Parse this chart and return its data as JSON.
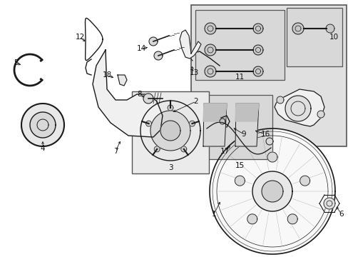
{
  "bg_color": "#ffffff",
  "fig_width": 4.89,
  "fig_height": 3.6,
  "dpi": 100,
  "line_color": "#1a1a1a",
  "gray_fill": "#f0f0f0",
  "mid_gray": "#d8d8d8",
  "box_gray": "#e8e8e8"
}
